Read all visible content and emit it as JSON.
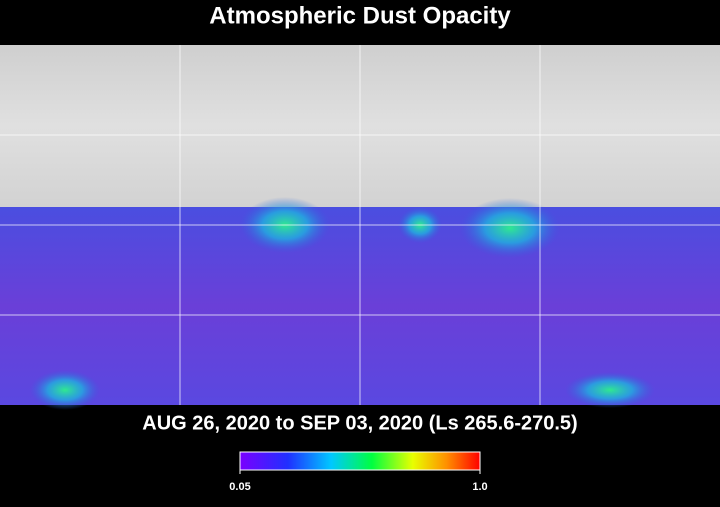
{
  "title": "Atmospheric Dust Opacity",
  "caption": "AUG 26, 2020 to SEP 03, 2020 (Ls 265.6-270.5)",
  "colorbar": {
    "range": [
      0.05,
      1
    ],
    "ticks": [
      0.05,
      {
        "value": 1,
        "label": "1.0"
      }
    ]
  }
}
